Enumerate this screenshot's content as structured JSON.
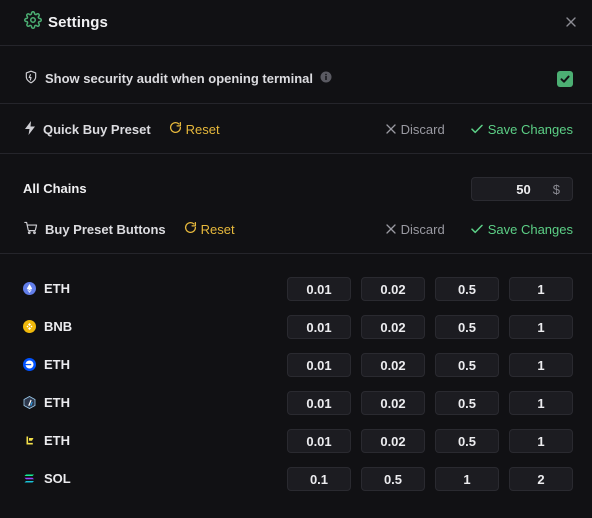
{
  "dialog": {
    "title": "Settings"
  },
  "audit": {
    "label": "Show security audit when opening terminal",
    "checked": true
  },
  "quick_buy": {
    "label": "Quick Buy Preset",
    "reset": "Reset",
    "discard": "Discard",
    "save": "Save Changes"
  },
  "all_chains": {
    "label": "All Chains",
    "amount": "50",
    "currency": "$"
  },
  "buy_preset": {
    "label": "Buy Preset Buttons",
    "reset": "Reset",
    "discard": "Discard",
    "save": "Save Changes"
  },
  "chains": [
    {
      "name": "ETH",
      "icon": "ethereum-icon",
      "presets": [
        "0.01",
        "0.02",
        "0.5",
        "1"
      ]
    },
    {
      "name": "BNB",
      "icon": "bnb-icon",
      "presets": [
        "0.01",
        "0.02",
        "0.5",
        "1"
      ]
    },
    {
      "name": "ETH",
      "icon": "base-icon",
      "presets": [
        "0.01",
        "0.02",
        "0.5",
        "1"
      ]
    },
    {
      "name": "ETH",
      "icon": "arbitrum-icon",
      "presets": [
        "0.01",
        "0.02",
        "0.5",
        "1"
      ]
    },
    {
      "name": "ETH",
      "icon": "linea-icon",
      "presets": [
        "0.01",
        "0.02",
        "0.5",
        "1"
      ]
    },
    {
      "name": "SOL",
      "icon": "solana-icon",
      "presets": [
        "0.1",
        "0.5",
        "1",
        "2"
      ]
    }
  ],
  "colors": {
    "accent_green": "#4caf73",
    "reset_yellow": "#e6b83c",
    "save_green": "#5ccf86"
  }
}
